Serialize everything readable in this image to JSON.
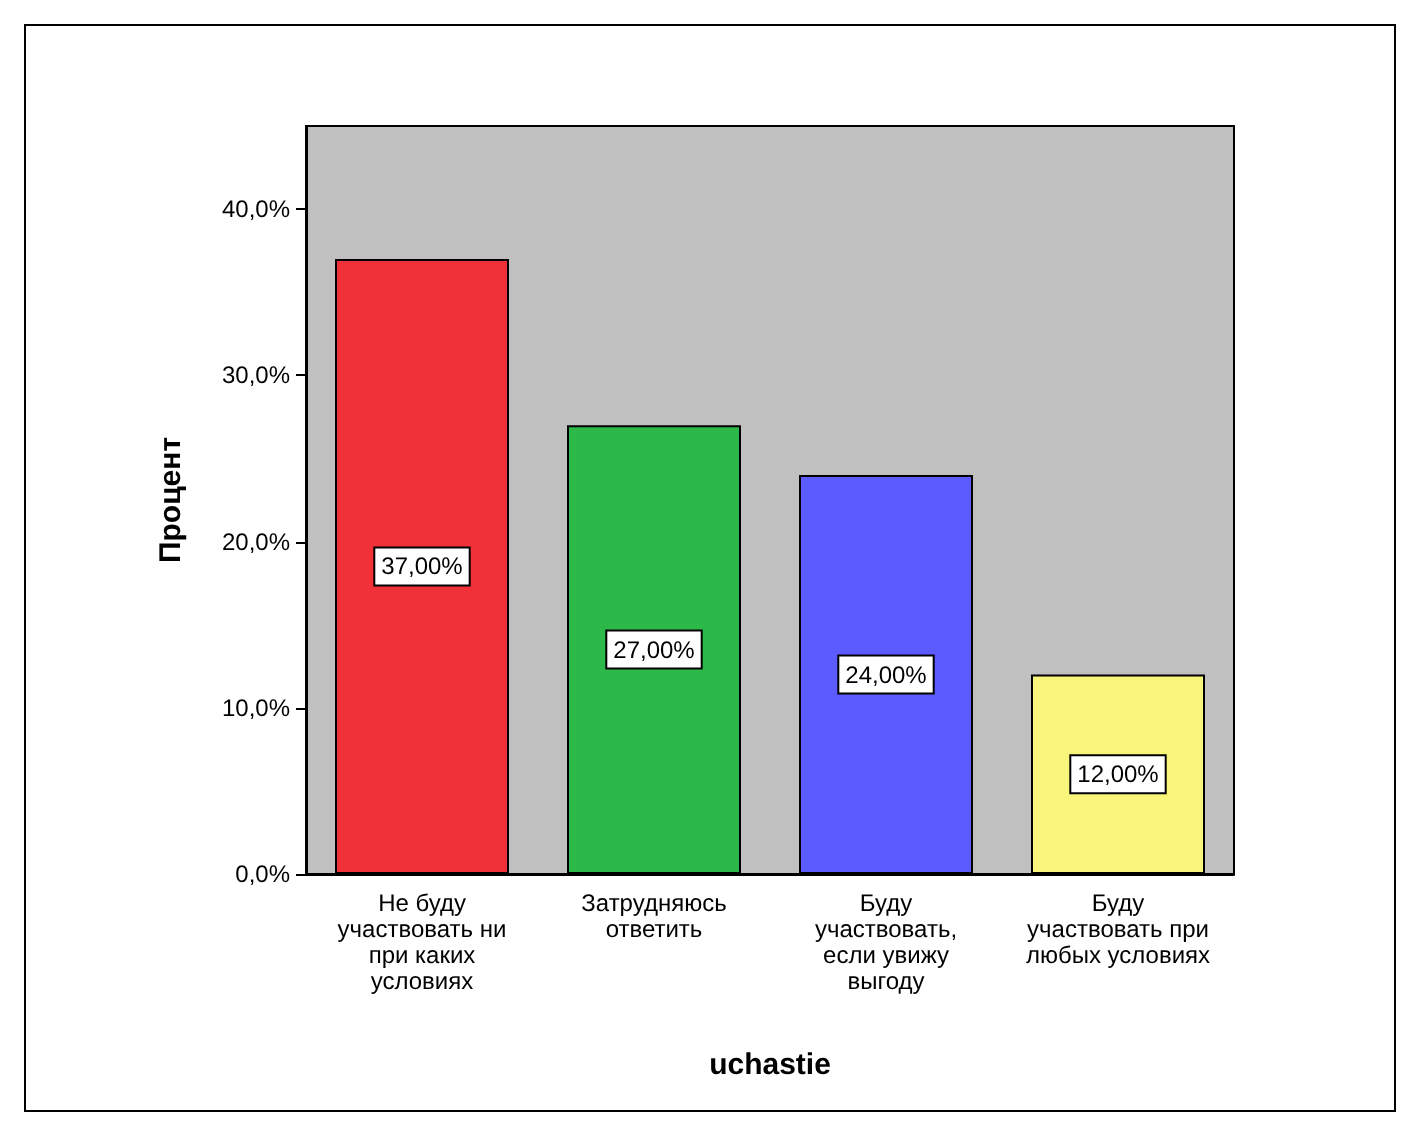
{
  "chart_data": {
    "type": "bar",
    "xlabel": "uchastie",
    "ylabel": "Процент",
    "categories": [
      "Не буду участвовать ни при каких условиях",
      "Затрудняюсь ответить",
      "Буду участвовать, если увижу выгоду",
      "Буду участвовать при любых условиях"
    ],
    "values": [
      37,
      27,
      24,
      12
    ],
    "colors": [
      "#f03238",
      "#2db84a",
      "#5b5bff",
      "#f8f57a"
    ],
    "value_labels": [
      "37,00%",
      "27,00%",
      "24,00%",
      "12,00%"
    ],
    "ylim": [
      0,
      45
    ],
    "yticks": [
      {
        "value": 0,
        "label": "0,0%"
      },
      {
        "value": 10,
        "label": "10,0%"
      },
      {
        "value": 20,
        "label": "20,0%"
      },
      {
        "value": 30,
        "label": "30,0%"
      },
      {
        "value": 40,
        "label": "40,0%"
      }
    ],
    "grid": false
  }
}
